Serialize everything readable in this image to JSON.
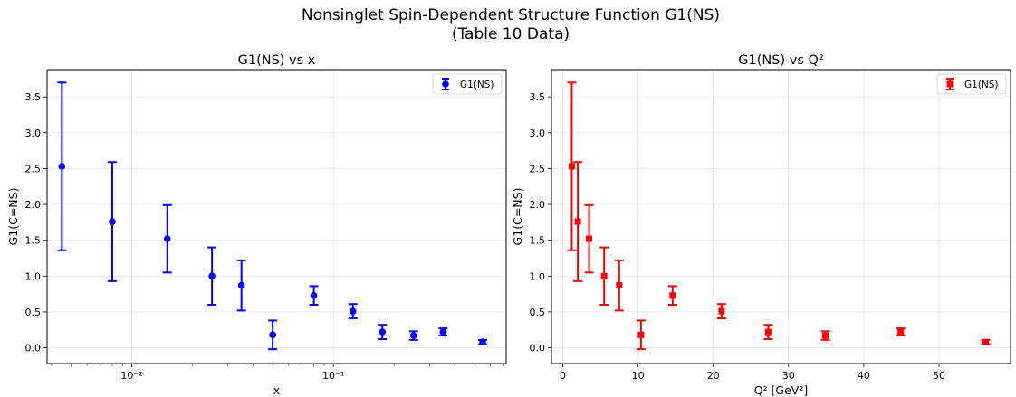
{
  "figure": {
    "title_line1": "Nonsinglet Spin-Dependent Structure Function G1(NS)",
    "title_line2": "(Table 10 Data)"
  },
  "chart_data": [
    {
      "type": "scatter",
      "title": "G1(NS) vs x",
      "xlabel": "x",
      "ylabel": "G1(C=NS)",
      "xscale": "log",
      "xlim": [
        0.0038,
        0.72
      ],
      "ylim": [
        -0.22,
        3.88
      ],
      "yticks": [
        0.0,
        0.5,
        1.0,
        1.5,
        2.0,
        2.5,
        3.0,
        3.5
      ],
      "xticks": [
        0.01,
        0.1
      ],
      "xtick_labels": [
        "10⁻²",
        "10⁻¹"
      ],
      "grid": true,
      "legend": "top-right",
      "color": "#0000ff",
      "marker": "circle",
      "series": [
        {
          "name": "G1(NS)",
          "x": [
            0.0045,
            0.008,
            0.015,
            0.025,
            0.035,
            0.05,
            0.08,
            0.125,
            0.175,
            0.25,
            0.35,
            0.55
          ],
          "y": [
            2.53,
            1.76,
            1.52,
            1.0,
            0.87,
            0.18,
            0.73,
            0.51,
            0.22,
            0.17,
            0.22,
            0.08
          ],
          "err": [
            1.17,
            0.83,
            0.47,
            0.4,
            0.35,
            0.2,
            0.13,
            0.1,
            0.1,
            0.06,
            0.05,
            0.03
          ]
        }
      ]
    },
    {
      "type": "scatter",
      "title": "G1(NS) vs Q²",
      "xlabel": "Q² [GeV²]",
      "ylabel": "G1(C=NS)",
      "xscale": "linear",
      "xlim": [
        -1.5,
        59.5
      ],
      "ylim": [
        -0.22,
        3.88
      ],
      "yticks": [
        0.0,
        0.5,
        1.0,
        1.5,
        2.0,
        2.5,
        3.0,
        3.5
      ],
      "xticks": [
        0,
        10,
        20,
        30,
        40,
        50
      ],
      "grid": true,
      "legend": "top-right",
      "color": "#ff0000",
      "marker": "square",
      "series": [
        {
          "name": "G1(NS)",
          "x": [
            1.2,
            2.0,
            3.5,
            5.5,
            7.5,
            10.4,
            14.6,
            21.1,
            27.3,
            34.9,
            44.9,
            56.2
          ],
          "y": [
            2.53,
            1.76,
            1.52,
            1.0,
            0.87,
            0.18,
            0.73,
            0.51,
            0.22,
            0.17,
            0.22,
            0.08
          ],
          "err": [
            1.17,
            0.83,
            0.47,
            0.4,
            0.35,
            0.2,
            0.13,
            0.1,
            0.1,
            0.06,
            0.05,
            0.03
          ]
        }
      ]
    }
  ]
}
